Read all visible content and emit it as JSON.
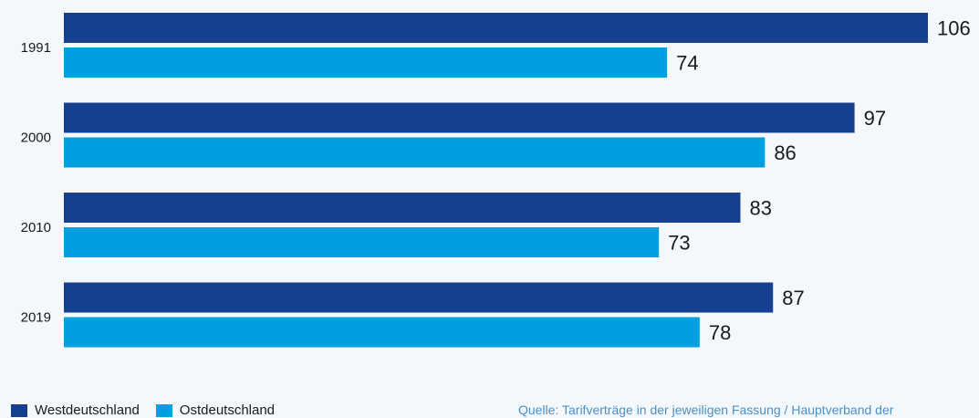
{
  "chart_data": {
    "type": "bar",
    "orientation": "horizontal",
    "categories": [
      "1991",
      "2000",
      "2010",
      "2019"
    ],
    "series": [
      {
        "name": "Westdeutschland",
        "color": "#163f8f",
        "values": [
          106,
          97,
          83,
          87
        ]
      },
      {
        "name": "Ostdeutschland",
        "color": "#009fdf",
        "values": [
          74,
          86,
          73,
          78
        ]
      }
    ],
    "xlim": [
      0,
      106
    ],
    "grid": false,
    "legend_position": "bottom-left",
    "source": "Quelle: Tarifverträge in der jeweiligen Fassung / Hauptverband der"
  }
}
